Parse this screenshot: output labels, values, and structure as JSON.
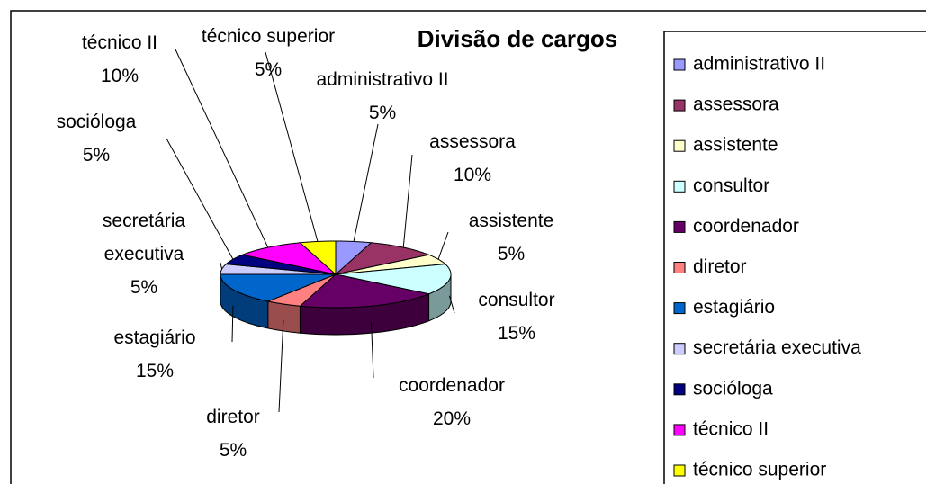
{
  "chart_data": {
    "type": "pie",
    "title": "Divisão de cargos",
    "categories": [
      "administrativo II",
      "assessora",
      "assistente",
      "consultor",
      "coordenador",
      "diretor",
      "estagiário",
      "secretária executiva",
      "socióloga",
      "técnico II",
      "técnico superior"
    ],
    "values": [
      5,
      10,
      5,
      15,
      20,
      5,
      15,
      5,
      5,
      10,
      5
    ],
    "value_labels": [
      "5%",
      "10%",
      "5%",
      "15%",
      "20%",
      "5%",
      "15%",
      "5%",
      "5%",
      "10%",
      "5%"
    ],
    "colors": [
      "#9999ff",
      "#993366",
      "#ffffcc",
      "#ccffff",
      "#660066",
      "#ff8080",
      "#0066cc",
      "#ccccff",
      "#000080",
      "#ff00ff",
      "#ffff00"
    ],
    "legend": "right"
  }
}
